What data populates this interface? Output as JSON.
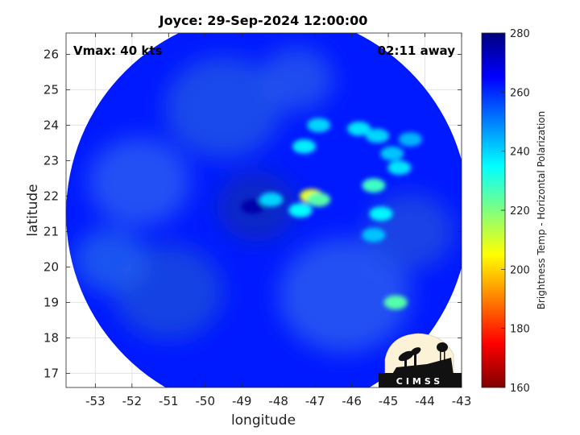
{
  "chart_data": {
    "type": "heatmap",
    "title": "Joyce: 29-Sep-2024 12:00:00",
    "xlabel": "longitude",
    "ylabel": "latitude",
    "xlim": [
      -53.8,
      -43
    ],
    "ylim": [
      16.6,
      26.6
    ],
    "x_ticks": [
      -53,
      -52,
      -51,
      -50,
      -49,
      -48,
      -47,
      -46,
      -45,
      -44,
      -43
    ],
    "y_ticks": [
      17,
      18,
      19,
      20,
      21,
      22,
      23,
      24,
      25,
      26
    ],
    "grid": true,
    "annotations": {
      "vmax": "Vmax: 40 kts",
      "time_away": "02:11 away"
    },
    "colorbar": {
      "label": "Brightness Temp - Horizontal Polarization",
      "min": 160,
      "max": 280,
      "ticks": [
        160,
        180,
        200,
        220,
        240,
        260,
        280
      ],
      "colormap": "jet"
    },
    "swath": {
      "center": [
        -48.3,
        21.5
      ],
      "radius_deg": 5.5,
      "background_value": 262
    },
    "features": [
      {
        "lon": -48.7,
        "lat": 21.7,
        "value": 275
      },
      {
        "lon": -47.1,
        "lat": 22.0,
        "value": 208
      },
      {
        "lon": -46.9,
        "lat": 21.9,
        "value": 225
      },
      {
        "lon": -47.4,
        "lat": 21.6,
        "value": 235
      },
      {
        "lon": -48.2,
        "lat": 21.9,
        "value": 240
      },
      {
        "lon": -47.3,
        "lat": 23.4,
        "value": 237
      },
      {
        "lon": -46.9,
        "lat": 24.0,
        "value": 240
      },
      {
        "lon": -45.8,
        "lat": 23.9,
        "value": 238
      },
      {
        "lon": -45.3,
        "lat": 23.7,
        "value": 240
      },
      {
        "lon": -44.9,
        "lat": 23.2,
        "value": 242
      },
      {
        "lon": -44.7,
        "lat": 22.8,
        "value": 238
      },
      {
        "lon": -45.4,
        "lat": 22.3,
        "value": 228
      },
      {
        "lon": -45.2,
        "lat": 21.5,
        "value": 236
      },
      {
        "lon": -45.4,
        "lat": 20.9,
        "value": 242
      },
      {
        "lon": -44.8,
        "lat": 19.0,
        "value": 225
      },
      {
        "lon": -44.4,
        "lat": 23.6,
        "value": 244
      }
    ]
  },
  "logo": {
    "text": "CIMSS"
  }
}
